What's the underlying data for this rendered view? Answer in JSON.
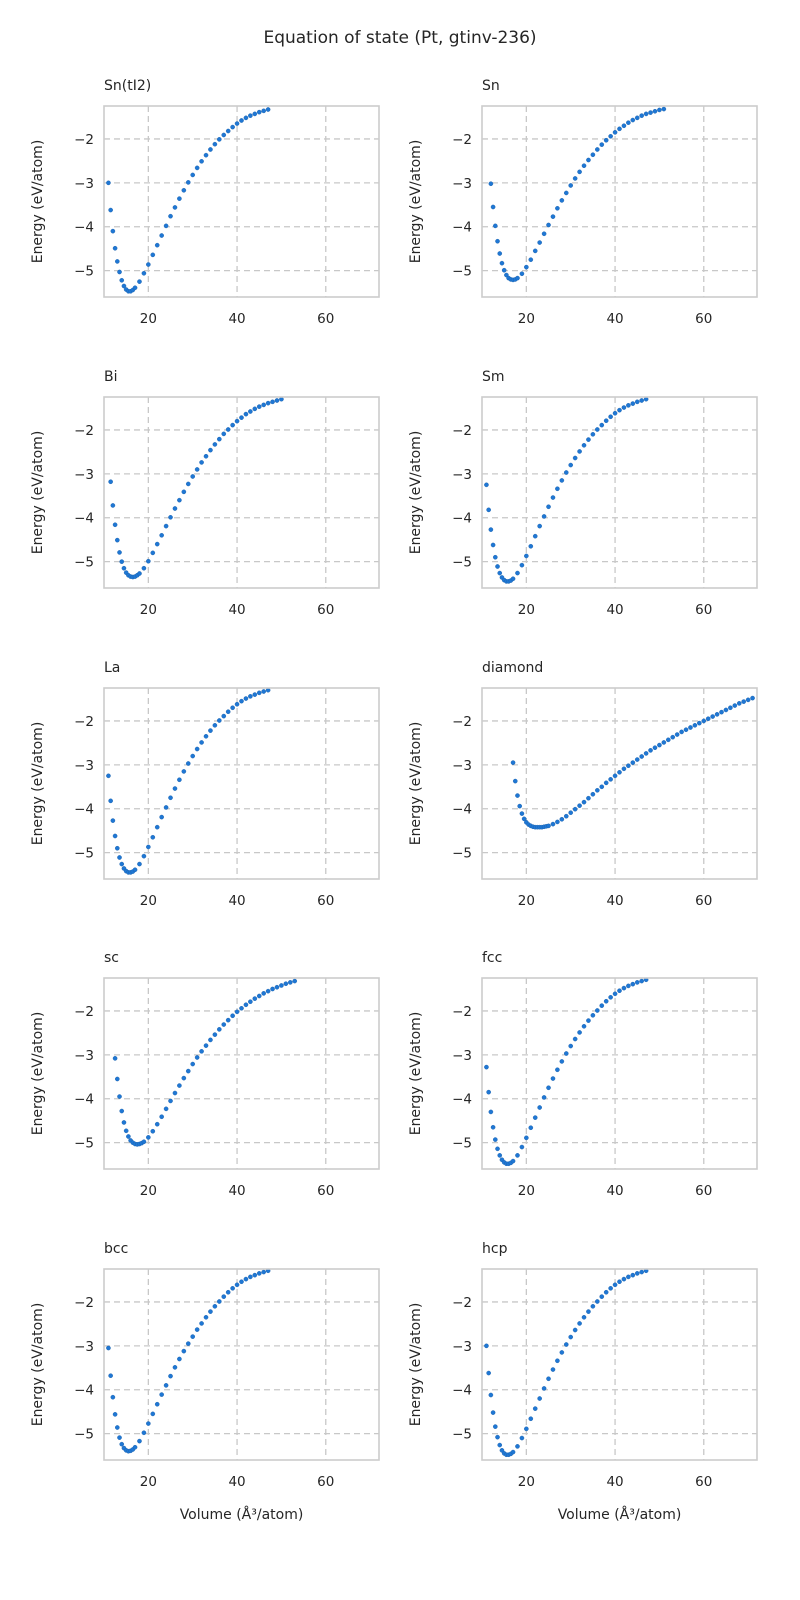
{
  "figure": {
    "title": "Equation of state (Pt, gtinv-236)"
  },
  "chart_data": [
    {
      "type": "scatter",
      "title": "Sn(tI2)",
      "xlabel": "",
      "ylabel": "Energy (eV/atom)",
      "xlim": [
        10,
        72
      ],
      "ylim": [
        -5.6,
        -1.25
      ],
      "grid": true,
      "xticks": [
        20,
        40,
        60
      ],
      "yticks": [
        -5,
        -4,
        -3,
        -2
      ],
      "color": "#1f77d4",
      "x": [
        11,
        11.5,
        12,
        12.5,
        13,
        13.5,
        14,
        14.5,
        15,
        15.5,
        16,
        16.5,
        17,
        18,
        19,
        20,
        21,
        22,
        23,
        24,
        25,
        26,
        27,
        28,
        29,
        30,
        31,
        32,
        33,
        34,
        35,
        36,
        37,
        38,
        39,
        40,
        41,
        42,
        43,
        44,
        45,
        46,
        47
      ],
      "y": [
        -3.0,
        -3.62,
        -4.1,
        -4.49,
        -4.79,
        -5.03,
        -5.22,
        -5.35,
        -5.43,
        -5.47,
        -5.47,
        -5.44,
        -5.39,
        -5.25,
        -5.06,
        -4.86,
        -4.64,
        -4.42,
        -4.2,
        -3.98,
        -3.76,
        -3.56,
        -3.36,
        -3.17,
        -2.99,
        -2.82,
        -2.66,
        -2.51,
        -2.37,
        -2.24,
        -2.12,
        -2.01,
        -1.91,
        -1.82,
        -1.73,
        -1.65,
        -1.58,
        -1.52,
        -1.47,
        -1.43,
        -1.39,
        -1.36,
        -1.33
      ]
    },
    {
      "type": "scatter",
      "title": "Sn",
      "xlabel": "",
      "ylabel": "Energy (eV/atom)",
      "xlim": [
        10,
        72
      ],
      "ylim": [
        -5.6,
        -1.25
      ],
      "grid": true,
      "xticks": [
        20,
        40,
        60
      ],
      "yticks": [
        -5,
        -4,
        -3,
        -2
      ],
      "color": "#1f77d4",
      "x": [
        12,
        12.5,
        13,
        13.5,
        14,
        14.5,
        15,
        15.5,
        16,
        16.5,
        17,
        17.5,
        18,
        19,
        20,
        21,
        22,
        23,
        24,
        25,
        26,
        27,
        28,
        29,
        30,
        31,
        32,
        33,
        34,
        35,
        36,
        37,
        38,
        39,
        40,
        41,
        42,
        43,
        44,
        45,
        46,
        47,
        48,
        49,
        50,
        51
      ],
      "y": [
        -3.02,
        -3.55,
        -3.98,
        -4.33,
        -4.61,
        -4.83,
        -4.99,
        -5.1,
        -5.17,
        -5.2,
        -5.21,
        -5.2,
        -5.17,
        -5.07,
        -4.92,
        -4.75,
        -4.55,
        -4.36,
        -4.16,
        -3.96,
        -3.77,
        -3.58,
        -3.4,
        -3.23,
        -3.06,
        -2.9,
        -2.75,
        -2.61,
        -2.48,
        -2.36,
        -2.24,
        -2.13,
        -2.03,
        -1.94,
        -1.85,
        -1.77,
        -1.7,
        -1.63,
        -1.57,
        -1.52,
        -1.47,
        -1.43,
        -1.4,
        -1.37,
        -1.34,
        -1.32
      ]
    },
    {
      "type": "scatter",
      "title": "Bi",
      "xlabel": "",
      "ylabel": "Energy (eV/atom)",
      "xlim": [
        10,
        72
      ],
      "ylim": [
        -5.6,
        -1.25
      ],
      "grid": true,
      "xticks": [
        20,
        40,
        60
      ],
      "yticks": [
        -5,
        -4,
        -3,
        -2
      ],
      "color": "#1f77d4",
      "x": [
        11.5,
        12,
        12.5,
        13,
        13.5,
        14,
        14.5,
        15,
        15.5,
        16,
        16.5,
        17,
        17.5,
        18,
        19,
        20,
        21,
        22,
        23,
        24,
        25,
        26,
        27,
        28,
        29,
        30,
        31,
        32,
        33,
        34,
        35,
        36,
        37,
        38,
        39,
        40,
        41,
        42,
        43,
        44,
        45,
        46,
        47,
        48,
        49,
        50
      ],
      "y": [
        -3.18,
        -3.72,
        -4.16,
        -4.51,
        -4.79,
        -5.0,
        -5.15,
        -5.25,
        -5.31,
        -5.34,
        -5.35,
        -5.34,
        -5.31,
        -5.27,
        -5.15,
        -4.99,
        -4.8,
        -4.6,
        -4.4,
        -4.19,
        -3.99,
        -3.79,
        -3.6,
        -3.41,
        -3.23,
        -3.06,
        -2.9,
        -2.74,
        -2.6,
        -2.46,
        -2.33,
        -2.21,
        -2.09,
        -1.99,
        -1.89,
        -1.8,
        -1.72,
        -1.64,
        -1.58,
        -1.52,
        -1.47,
        -1.43,
        -1.39,
        -1.36,
        -1.33,
        -1.3
      ]
    },
    {
      "type": "scatter",
      "title": "Sm",
      "xlabel": "",
      "ylabel": "Energy (eV/atom)",
      "xlim": [
        10,
        72
      ],
      "ylim": [
        -5.6,
        -1.25
      ],
      "grid": true,
      "xticks": [
        20,
        40,
        60
      ],
      "yticks": [
        -5,
        -4,
        -3,
        -2
      ],
      "color": "#1f77d4",
      "x": [
        11,
        11.5,
        12,
        12.5,
        13,
        13.5,
        14,
        14.5,
        15,
        15.5,
        16,
        16.5,
        17,
        18,
        19,
        20,
        21,
        22,
        23,
        24,
        25,
        26,
        27,
        28,
        29,
        30,
        31,
        32,
        33,
        34,
        35,
        36,
        37,
        38,
        39,
        40,
        41,
        42,
        43,
        44,
        45,
        46,
        47
      ],
      "y": [
        -3.25,
        -3.82,
        -4.27,
        -4.62,
        -4.9,
        -5.11,
        -5.26,
        -5.36,
        -5.42,
        -5.45,
        -5.45,
        -5.43,
        -5.39,
        -5.26,
        -5.08,
        -4.87,
        -4.65,
        -4.42,
        -4.19,
        -3.97,
        -3.75,
        -3.54,
        -3.34,
        -3.15,
        -2.97,
        -2.8,
        -2.64,
        -2.49,
        -2.35,
        -2.22,
        -2.1,
        -1.99,
        -1.89,
        -1.79,
        -1.7,
        -1.62,
        -1.55,
        -1.49,
        -1.44,
        -1.4,
        -1.36,
        -1.33,
        -1.3
      ]
    },
    {
      "type": "scatter",
      "title": "La",
      "xlabel": "",
      "ylabel": "Energy (eV/atom)",
      "xlim": [
        10,
        72
      ],
      "ylim": [
        -5.6,
        -1.25
      ],
      "grid": true,
      "xticks": [
        20,
        40,
        60
      ],
      "yticks": [
        -5,
        -4,
        -3,
        -2
      ],
      "color": "#1f77d4",
      "x": [
        11,
        11.5,
        12,
        12.5,
        13,
        13.5,
        14,
        14.5,
        15,
        15.5,
        16,
        16.5,
        17,
        18,
        19,
        20,
        21,
        22,
        23,
        24,
        25,
        26,
        27,
        28,
        29,
        30,
        31,
        32,
        33,
        34,
        35,
        36,
        37,
        38,
        39,
        40,
        41,
        42,
        43,
        44,
        45,
        46,
        47
      ],
      "y": [
        -3.25,
        -3.82,
        -4.27,
        -4.62,
        -4.9,
        -5.11,
        -5.26,
        -5.36,
        -5.42,
        -5.45,
        -5.45,
        -5.43,
        -5.39,
        -5.26,
        -5.08,
        -4.87,
        -4.65,
        -4.42,
        -4.19,
        -3.97,
        -3.75,
        -3.54,
        -3.34,
        -3.15,
        -2.97,
        -2.8,
        -2.64,
        -2.49,
        -2.35,
        -2.22,
        -2.1,
        -1.99,
        -1.89,
        -1.79,
        -1.7,
        -1.62,
        -1.55,
        -1.49,
        -1.44,
        -1.4,
        -1.36,
        -1.33,
        -1.3
      ]
    },
    {
      "type": "scatter",
      "title": "diamond",
      "xlabel": "",
      "ylabel": "Energy (eV/atom)",
      "xlim": [
        10,
        72
      ],
      "ylim": [
        -5.6,
        -1.25
      ],
      "grid": true,
      "xticks": [
        20,
        40,
        60
      ],
      "yticks": [
        -5,
        -4,
        -3,
        -2
      ],
      "color": "#1f77d4",
      "x": [
        17,
        17.5,
        18,
        18.5,
        19,
        19.5,
        20,
        20.5,
        21,
        21.5,
        22,
        22.5,
        23,
        23.5,
        24,
        24.5,
        25,
        26,
        27,
        28,
        29,
        30,
        31,
        32,
        33,
        34,
        35,
        36,
        37,
        38,
        39,
        40,
        41,
        42,
        43,
        44,
        45,
        46,
        47,
        48,
        49,
        50,
        51,
        52,
        53,
        54,
        55,
        56,
        57,
        58,
        59,
        60,
        61,
        62,
        63,
        64,
        65,
        66,
        67,
        68,
        69,
        70,
        71
      ],
      "y": [
        -2.95,
        -3.37,
        -3.7,
        -3.94,
        -4.11,
        -4.23,
        -4.31,
        -4.36,
        -4.39,
        -4.41,
        -4.42,
        -4.42,
        -4.42,
        -4.42,
        -4.41,
        -4.4,
        -4.39,
        -4.35,
        -4.3,
        -4.24,
        -4.17,
        -4.09,
        -4.01,
        -3.93,
        -3.85,
        -3.76,
        -3.67,
        -3.58,
        -3.5,
        -3.41,
        -3.33,
        -3.25,
        -3.17,
        -3.09,
        -3.02,
        -2.95,
        -2.88,
        -2.81,
        -2.74,
        -2.67,
        -2.61,
        -2.55,
        -2.49,
        -2.43,
        -2.37,
        -2.31,
        -2.25,
        -2.2,
        -2.15,
        -2.1,
        -2.05,
        -2.0,
        -1.95,
        -1.9,
        -1.85,
        -1.8,
        -1.75,
        -1.7,
        -1.65,
        -1.6,
        -1.56,
        -1.52,
        -1.48
      ]
    },
    {
      "type": "scatter",
      "title": "sc",
      "xlabel": "",
      "ylabel": "Energy (eV/atom)",
      "xlim": [
        10,
        72
      ],
      "ylim": [
        -5.6,
        -1.25
      ],
      "grid": true,
      "xticks": [
        20,
        40,
        60
      ],
      "yticks": [
        -5,
        -4,
        -3,
        -2
      ],
      "color": "#1f77d4",
      "x": [
        12.5,
        13,
        13.5,
        14,
        14.5,
        15,
        15.5,
        16,
        16.5,
        17,
        17.5,
        18,
        18.5,
        19,
        20,
        21,
        22,
        23,
        24,
        25,
        26,
        27,
        28,
        29,
        30,
        31,
        32,
        33,
        34,
        35,
        36,
        37,
        38,
        39,
        40,
        41,
        42,
        43,
        44,
        45,
        46,
        47,
        48,
        49,
        50,
        51,
        52,
        53
      ],
      "y": [
        -3.08,
        -3.55,
        -3.95,
        -4.28,
        -4.54,
        -4.73,
        -4.86,
        -4.95,
        -5.0,
        -5.03,
        -5.04,
        -5.03,
        -5.01,
        -4.98,
        -4.88,
        -4.74,
        -4.58,
        -4.41,
        -4.23,
        -4.05,
        -3.87,
        -3.7,
        -3.53,
        -3.37,
        -3.21,
        -3.06,
        -2.92,
        -2.79,
        -2.66,
        -2.54,
        -2.42,
        -2.31,
        -2.21,
        -2.11,
        -2.02,
        -1.94,
        -1.86,
        -1.79,
        -1.72,
        -1.66,
        -1.6,
        -1.55,
        -1.5,
        -1.46,
        -1.42,
        -1.38,
        -1.35,
        -1.32
      ]
    },
    {
      "type": "scatter",
      "title": "fcc",
      "xlabel": "",
      "ylabel": "Energy (eV/atom)",
      "xlim": [
        10,
        72
      ],
      "ylim": [
        -5.6,
        -1.25
      ],
      "grid": true,
      "xticks": [
        20,
        40,
        60
      ],
      "yticks": [
        -5,
        -4,
        -3,
        -2
      ],
      "color": "#1f77d4",
      "x": [
        11,
        11.5,
        12,
        12.5,
        13,
        13.5,
        14,
        14.5,
        15,
        15.5,
        16,
        16.5,
        17,
        18,
        19,
        20,
        21,
        22,
        23,
        24,
        25,
        26,
        27,
        28,
        29,
        30,
        31,
        32,
        33,
        34,
        35,
        36,
        37,
        38,
        39,
        40,
        41,
        42,
        43,
        44,
        45,
        46,
        47
      ],
      "y": [
        -3.28,
        -3.85,
        -4.3,
        -4.65,
        -4.93,
        -5.14,
        -5.29,
        -5.39,
        -5.45,
        -5.48,
        -5.48,
        -5.46,
        -5.42,
        -5.29,
        -5.1,
        -4.89,
        -4.66,
        -4.43,
        -4.2,
        -3.97,
        -3.75,
        -3.54,
        -3.34,
        -3.15,
        -2.97,
        -2.8,
        -2.64,
        -2.49,
        -2.35,
        -2.22,
        -2.1,
        -1.99,
        -1.88,
        -1.78,
        -1.69,
        -1.61,
        -1.54,
        -1.48,
        -1.43,
        -1.39,
        -1.35,
        -1.32,
        -1.29
      ]
    },
    {
      "type": "scatter",
      "title": "bcc",
      "xlabel": "Volume (Å³/atom)",
      "ylabel": "Energy (eV/atom)",
      "xlim": [
        10,
        72
      ],
      "ylim": [
        -5.6,
        -1.25
      ],
      "grid": true,
      "xticks": [
        20,
        40,
        60
      ],
      "yticks": [
        -5,
        -4,
        -3,
        -2
      ],
      "color": "#1f77d4",
      "x": [
        11,
        11.5,
        12,
        12.5,
        13,
        13.5,
        14,
        14.5,
        15,
        15.5,
        16,
        16.5,
        17,
        18,
        19,
        20,
        21,
        22,
        23,
        24,
        25,
        26,
        27,
        28,
        29,
        30,
        31,
        32,
        33,
        34,
        35,
        36,
        37,
        38,
        39,
        40,
        41,
        42,
        43,
        44,
        45,
        46,
        47
      ],
      "y": [
        -3.05,
        -3.68,
        -4.17,
        -4.56,
        -4.86,
        -5.09,
        -5.24,
        -5.33,
        -5.38,
        -5.4,
        -5.39,
        -5.36,
        -5.31,
        -5.17,
        -4.98,
        -4.77,
        -4.55,
        -4.33,
        -4.11,
        -3.9,
        -3.69,
        -3.49,
        -3.3,
        -3.12,
        -2.95,
        -2.79,
        -2.63,
        -2.49,
        -2.35,
        -2.22,
        -2.1,
        -1.99,
        -1.88,
        -1.78,
        -1.69,
        -1.61,
        -1.54,
        -1.48,
        -1.43,
        -1.39,
        -1.35,
        -1.32,
        -1.29
      ]
    },
    {
      "type": "scatter",
      "title": "hcp",
      "xlabel": "Volume (Å³/atom)",
      "ylabel": "Energy (eV/atom)",
      "xlim": [
        10,
        72
      ],
      "ylim": [
        -5.6,
        -1.25
      ],
      "grid": true,
      "xticks": [
        20,
        40,
        60
      ],
      "yticks": [
        -5,
        -4,
        -3,
        -2
      ],
      "color": "#1f77d4",
      "x": [
        11,
        11.5,
        12,
        12.5,
        13,
        13.5,
        14,
        14.5,
        15,
        15.5,
        16,
        16.5,
        17,
        18,
        19,
        20,
        21,
        22,
        23,
        24,
        25,
        26,
        27,
        28,
        29,
        30,
        31,
        32,
        33,
        34,
        35,
        36,
        37,
        38,
        39,
        40,
        41,
        42,
        43,
        44,
        45,
        46,
        47
      ],
      "y": [
        -3.0,
        -3.62,
        -4.12,
        -4.52,
        -4.84,
        -5.08,
        -5.26,
        -5.38,
        -5.45,
        -5.48,
        -5.48,
        -5.46,
        -5.42,
        -5.29,
        -5.1,
        -4.89,
        -4.66,
        -4.43,
        -4.2,
        -3.97,
        -3.75,
        -3.54,
        -3.34,
        -3.15,
        -2.97,
        -2.8,
        -2.64,
        -2.49,
        -2.35,
        -2.22,
        -2.1,
        -1.99,
        -1.88,
        -1.78,
        -1.69,
        -1.61,
        -1.54,
        -1.48,
        -1.43,
        -1.39,
        -1.35,
        -1.32,
        -1.29
      ]
    }
  ]
}
